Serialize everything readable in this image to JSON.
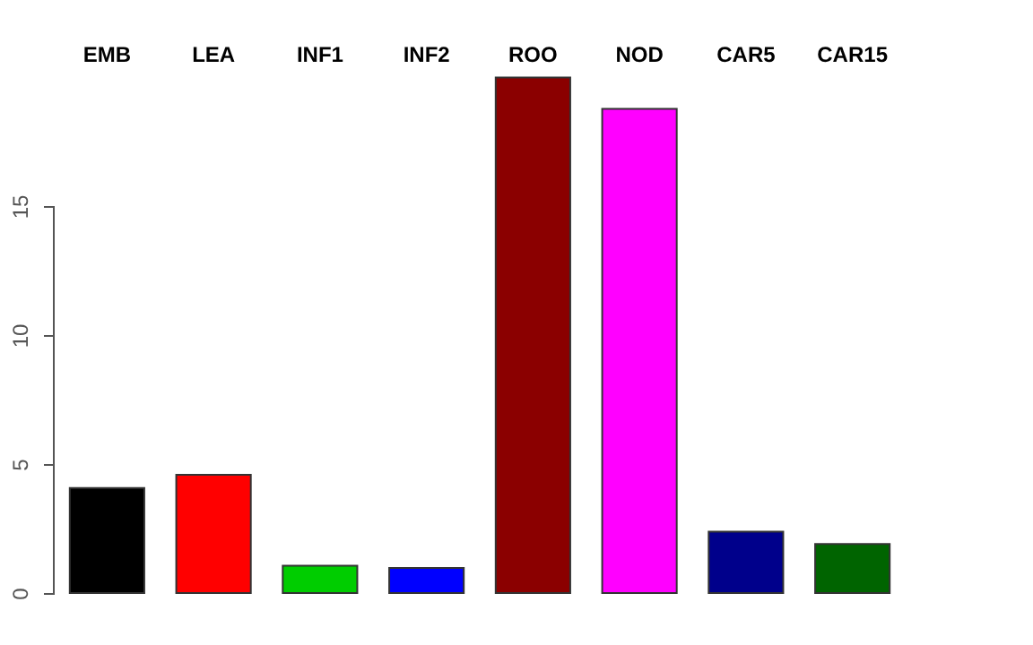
{
  "chart_data": {
    "type": "bar",
    "categories": [
      "EMB",
      "LEA",
      "INF1",
      "INF2",
      "ROO",
      "NOD",
      "CAR5",
      "CAR15"
    ],
    "values": [
      4.07,
      4.58,
      1.06,
      0.97,
      19.98,
      18.77,
      2.38,
      1.9
    ],
    "colors": [
      "#000000",
      "#ff0000",
      "#00cd00",
      "#0000ff",
      "#8b0000",
      "#ff00ff",
      "#00008b",
      "#006400"
    ],
    "ylim": [
      0,
      20
    ],
    "yticks": [
      0,
      5,
      10,
      15
    ],
    "grid": false
  }
}
